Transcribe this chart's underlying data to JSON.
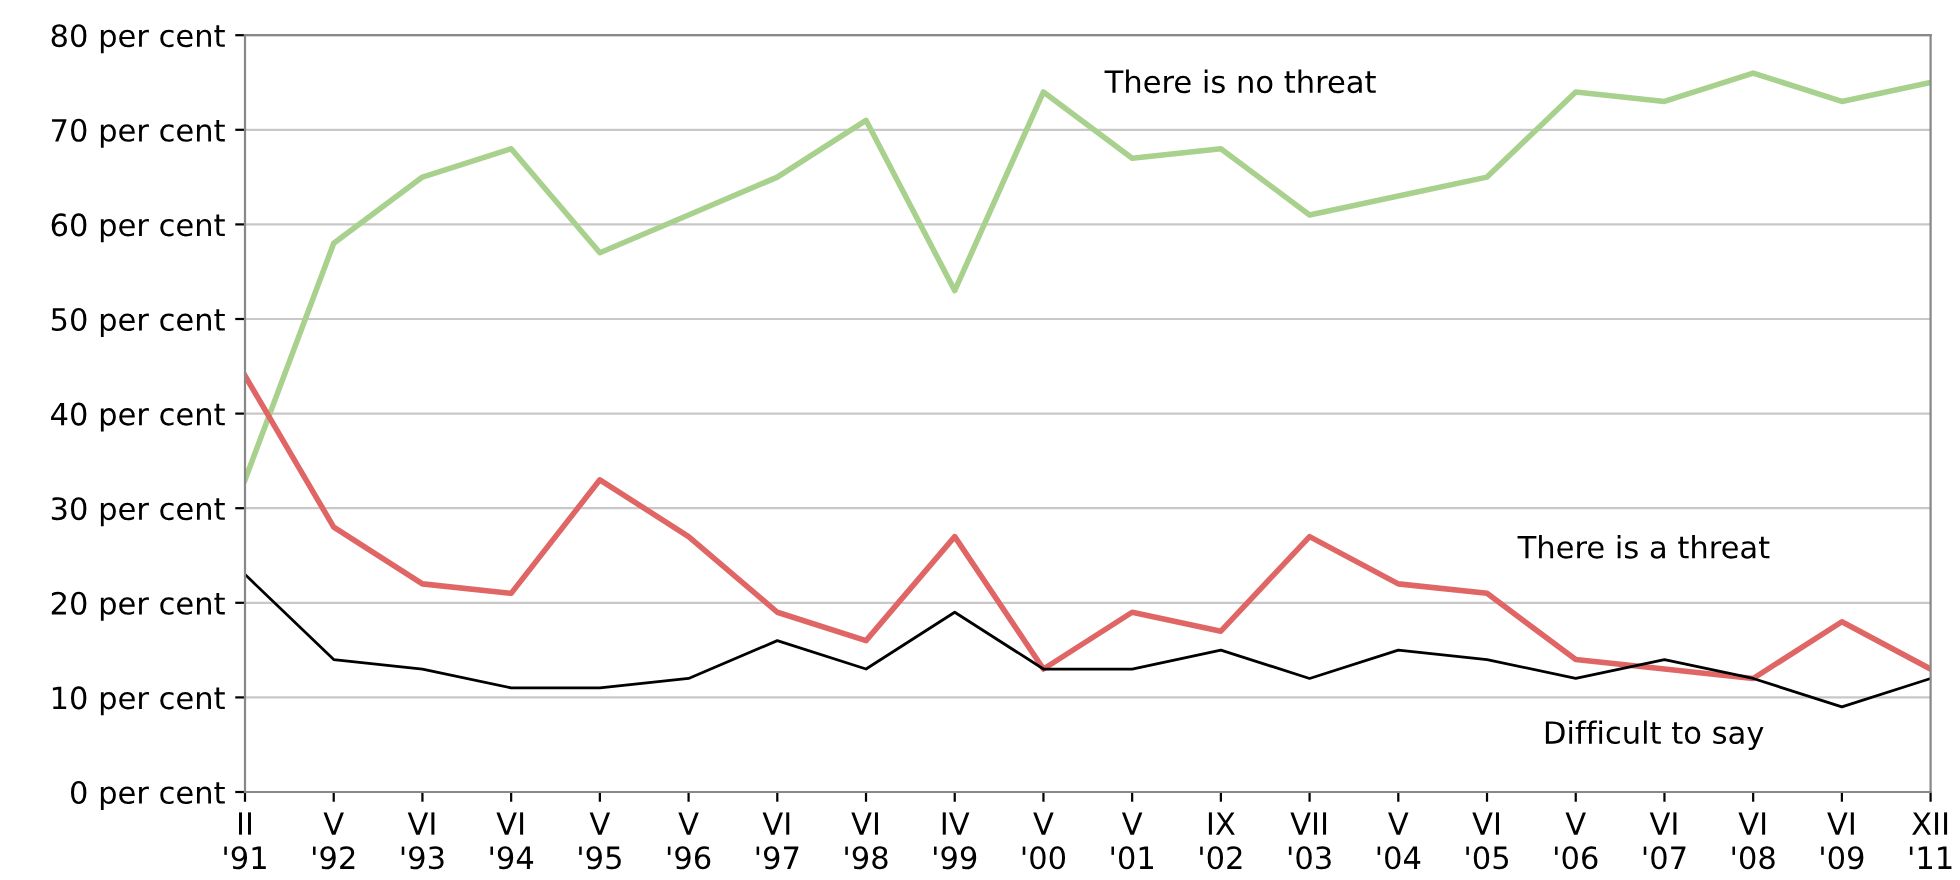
{
  "chart_data": {
    "type": "line",
    "categories": [
      "II\n'91",
      "V\n'92",
      "VI\n'93",
      "VI\n'94",
      "V\n'95",
      "V\n'96",
      "VI\n'97",
      "VI\n'98",
      "IV\n'99",
      "V\n'00",
      "V\n'01",
      "IX\n'02",
      "VII\n'03",
      "V\n'04",
      "VI\n'05",
      "V\n'06",
      "VI\n'07",
      "VI\n'08",
      "VI\n'09",
      "XII\n'11"
    ],
    "series": [
      {
        "color": "#a9d18e",
        "values": [
          33,
          58,
          65,
          68,
          57,
          61,
          65,
          71,
          53,
          74,
          67,
          68,
          61,
          63,
          65,
          74,
          73,
          76,
          73,
          75
        ]
      },
      {
        "color": "#e06666",
        "values": [
          44,
          28,
          22,
          21,
          33,
          27,
          19,
          16,
          27,
          13,
          19,
          17,
          27,
          22,
          21,
          14,
          13,
          12,
          18,
          13
        ]
      },
      {
        "color": "#000000",
        "values": [
          23,
          14,
          13,
          11,
          11,
          12,
          16,
          13,
          19,
          13,
          13,
          15,
          12,
          15,
          14,
          12,
          14,
          12,
          9,
          12
        ]
      }
    ],
    "ylim": [
      0,
      80
    ],
    "yticks": [
      {
        "value": 0,
        "label": "0 per cent"
      },
      {
        "value": 10,
        "label": "10 per cent"
      },
      {
        "value": 20,
        "label": "20 per cent"
      },
      {
        "value": 30,
        "label": "30 per cent"
      },
      {
        "value": 40,
        "label": "40 per cent"
      },
      {
        "value": 50,
        "label": "50 per cent"
      },
      {
        "value": 60,
        "label": "60 per cent"
      },
      {
        "value": 70,
        "label": "70 per cent"
      },
      {
        "value": 80,
        "label": "80 per cent"
      }
    ],
    "grid": "y",
    "marker": "none",
    "line_style": "solid",
    "annotations": [
      "There is no threat",
      "There is a threat",
      "Difficult to say"
    ]
  }
}
